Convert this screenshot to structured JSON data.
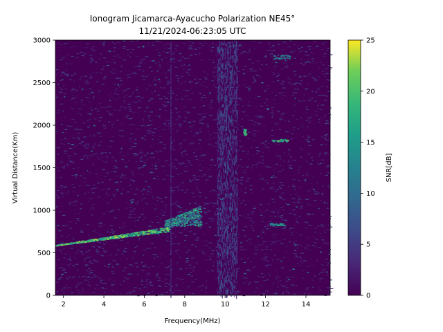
{
  "chart_data": {
    "type": "heatmap",
    "title": "Ionogram Jicamarca-Ayacucho Polarization NE45°",
    "subtitle": "11/21/2024-06:23:05 UTC",
    "xlabel": "Frequency(MHz)",
    "ylabel": "Virtual Distance(Km)",
    "xlim": [
      1.6,
      15.2
    ],
    "ylim": [
      0,
      3000
    ],
    "xticks": [
      2,
      4,
      6,
      8,
      10,
      12,
      14
    ],
    "yticks": [
      0,
      500,
      1000,
      1500,
      2000,
      2500,
      3000
    ],
    "colorbar": {
      "label": "SNR[dB]",
      "range": [
        0,
        25
      ],
      "ticks": [
        0,
        5,
        10,
        15,
        20,
        25
      ],
      "colormap": "viridis"
    },
    "features": [
      {
        "name": "F-layer trace",
        "freq_start": 1.6,
        "freq_end": 7.2,
        "distance_start": 590,
        "distance_end": 780,
        "snr": 22
      },
      {
        "name": "trace cluster",
        "freq_start": 7.0,
        "freq_end": 8.8,
        "distance_start": 760,
        "distance_end": 1000,
        "snr": 18
      },
      {
        "name": "interference band",
        "freq_start": 9.6,
        "freq_end": 10.6,
        "distance_start": 0,
        "distance_end": 3000,
        "snr": 4
      },
      {
        "name": "interference line",
        "freq_start": 7.3,
        "freq_end": 7.35,
        "distance_start": 0,
        "distance_end": 3000,
        "snr": 3
      },
      {
        "name": "echo patch",
        "freq_start": 12.3,
        "freq_end": 13.1,
        "distance_start": 1810,
        "distance_end": 1840,
        "snr": 20
      },
      {
        "name": "echo patch",
        "freq_start": 12.3,
        "freq_end": 13.2,
        "distance_start": 2780,
        "distance_end": 2830,
        "snr": 14
      },
      {
        "name": "echo patch",
        "freq_start": 10.9,
        "freq_end": 11.0,
        "distance_start": 1880,
        "distance_end": 1960,
        "snr": 21
      },
      {
        "name": "echo patch",
        "freq_start": 12.2,
        "freq_end": 13.0,
        "distance_start": 820,
        "distance_end": 850,
        "snr": 16
      }
    ]
  }
}
